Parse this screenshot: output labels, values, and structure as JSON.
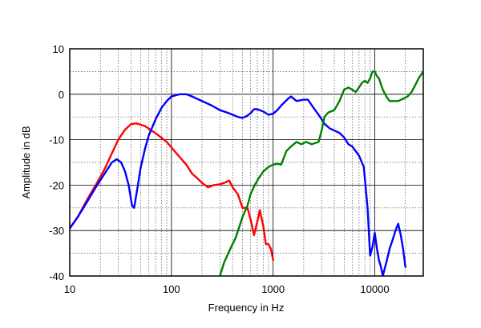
{
  "chart_data": {
    "type": "line",
    "title": "",
    "xlabel": "Frequency in Hz",
    "ylabel": "Amplitude in dB",
    "x_scale": "log",
    "xlim": [
      10,
      30000
    ],
    "ylim": [
      -40,
      10
    ],
    "x_ticks": [
      10,
      100,
      1000,
      10000
    ],
    "x_tick_labels": [
      "10",
      "100",
      "1000",
      "10000"
    ],
    "y_ticks": [
      10,
      0,
      -10,
      -20,
      -30,
      -40
    ],
    "y_tick_labels": [
      "10",
      "0",
      "-10",
      "-20",
      "-30",
      "-40"
    ],
    "grid": "on",
    "legend": "none",
    "series": [
      {
        "color": "#ff0000",
        "points": [
          [
            10,
            -29.5
          ],
          [
            12,
            -27
          ],
          [
            15,
            -23
          ],
          [
            18,
            -20
          ],
          [
            22,
            -16.5
          ],
          [
            26,
            -13
          ],
          [
            30,
            -10
          ],
          [
            35,
            -7.8
          ],
          [
            40,
            -6.6
          ],
          [
            45,
            -6.4
          ],
          [
            55,
            -7
          ],
          [
            70,
            -8.6
          ],
          [
            90,
            -10.5
          ],
          [
            110,
            -12.8
          ],
          [
            140,
            -15.5
          ],
          [
            160,
            -17.5
          ],
          [
            180,
            -18.5
          ],
          [
            200,
            -19.5
          ],
          [
            230,
            -20.5
          ],
          [
            260,
            -20
          ],
          [
            300,
            -19.8
          ],
          [
            340,
            -19.4
          ],
          [
            370,
            -19
          ],
          [
            400,
            -20.5
          ],
          [
            450,
            -22
          ],
          [
            500,
            -25
          ],
          [
            560,
            -25
          ],
          [
            600,
            -27.5
          ],
          [
            650,
            -31
          ],
          [
            700,
            -28
          ],
          [
            740,
            -25.5
          ],
          [
            800,
            -29
          ],
          [
            850,
            -33
          ],
          [
            900,
            -33
          ],
          [
            950,
            -34
          ],
          [
            1000,
            -36.5
          ]
        ]
      },
      {
        "color": "#0000ff",
        "points": [
          [
            10,
            -29.5
          ],
          [
            12,
            -27
          ],
          [
            15,
            -23.5
          ],
          [
            18,
            -20.5
          ],
          [
            22,
            -17.5
          ],
          [
            26,
            -15
          ],
          [
            29,
            -14.3
          ],
          [
            32,
            -15
          ],
          [
            35,
            -17
          ],
          [
            38,
            -20
          ],
          [
            41,
            -24.5
          ],
          [
            43,
            -25
          ],
          [
            46,
            -21
          ],
          [
            50,
            -16
          ],
          [
            55,
            -12
          ],
          [
            60,
            -9
          ],
          [
            70,
            -5.5
          ],
          [
            80,
            -3
          ],
          [
            90,
            -1.5
          ],
          [
            100,
            -0.5
          ],
          [
            120,
            0
          ],
          [
            140,
            0
          ],
          [
            160,
            -0.5
          ],
          [
            200,
            -1.5
          ],
          [
            250,
            -2.5
          ],
          [
            300,
            -3.5
          ],
          [
            350,
            -4
          ],
          [
            400,
            -4.5
          ],
          [
            450,
            -5
          ],
          [
            500,
            -5.2
          ],
          [
            550,
            -4.8
          ],
          [
            600,
            -4.2
          ],
          [
            650,
            -3.3
          ],
          [
            700,
            -3.3
          ],
          [
            800,
            -3.8
          ],
          [
            900,
            -4.5
          ],
          [
            1000,
            -4.3
          ],
          [
            1100,
            -3.5
          ],
          [
            1200,
            -2.5
          ],
          [
            1400,
            -1
          ],
          [
            1500,
            -0.5
          ],
          [
            1700,
            -1.5
          ],
          [
            2000,
            -1.2
          ],
          [
            2200,
            -1.2
          ],
          [
            2500,
            -3
          ],
          [
            2800,
            -4.5
          ],
          [
            3200,
            -6.5
          ],
          [
            3600,
            -7.5
          ],
          [
            4000,
            -8
          ],
          [
            4500,
            -8.5
          ],
          [
            5000,
            -9.5
          ],
          [
            5500,
            -11
          ],
          [
            6000,
            -11.5
          ],
          [
            7000,
            -13.5
          ],
          [
            7800,
            -16
          ],
          [
            8500,
            -25
          ],
          [
            9000,
            -35.5
          ],
          [
            9500,
            -33.5
          ],
          [
            10000,
            -30.5
          ],
          [
            10500,
            -34
          ],
          [
            11000,
            -36.5
          ],
          [
            11500,
            -38
          ],
          [
            12000,
            -40
          ],
          [
            13000,
            -37
          ],
          [
            14000,
            -34
          ],
          [
            15000,
            -32
          ],
          [
            16000,
            -30
          ],
          [
            17000,
            -28.5
          ],
          [
            18000,
            -31
          ],
          [
            19000,
            -34
          ],
          [
            20000,
            -38
          ]
        ]
      },
      {
        "color": "#008000",
        "points": [
          [
            300,
            -40
          ],
          [
            330,
            -37
          ],
          [
            380,
            -34
          ],
          [
            430,
            -31.5
          ],
          [
            500,
            -27
          ],
          [
            560,
            -24.5
          ],
          [
            600,
            -22
          ],
          [
            660,
            -20
          ],
          [
            720,
            -18.5
          ],
          [
            800,
            -17
          ],
          [
            900,
            -16
          ],
          [
            1000,
            -15.5
          ],
          [
            1100,
            -15.3
          ],
          [
            1200,
            -15.5
          ],
          [
            1250,
            -14.5
          ],
          [
            1350,
            -12.5
          ],
          [
            1500,
            -11.5
          ],
          [
            1700,
            -10.5
          ],
          [
            1900,
            -11
          ],
          [
            2100,
            -10.5
          ],
          [
            2400,
            -11
          ],
          [
            2800,
            -10.5
          ],
          [
            3000,
            -8
          ],
          [
            3200,
            -5
          ],
          [
            3500,
            -4
          ],
          [
            4000,
            -3.5
          ],
          [
            4500,
            -1.5
          ],
          [
            5000,
            1
          ],
          [
            5500,
            1.5
          ],
          [
            6000,
            1
          ],
          [
            6500,
            0.5
          ],
          [
            7000,
            1.5
          ],
          [
            7500,
            2.5
          ],
          [
            8000,
            3
          ],
          [
            8500,
            2.5
          ],
          [
            9000,
            3.5
          ],
          [
            9500,
            5
          ],
          [
            10000,
            5
          ],
          [
            10500,
            4
          ],
          [
            11000,
            3.5
          ],
          [
            12000,
            1
          ],
          [
            13000,
            -0.5
          ],
          [
            14000,
            -1.5
          ],
          [
            15000,
            -1.5
          ],
          [
            17000,
            -1.5
          ],
          [
            19000,
            -1
          ],
          [
            21000,
            -0.5
          ],
          [
            23000,
            0.5
          ],
          [
            25000,
            2
          ],
          [
            27000,
            3.5
          ],
          [
            30000,
            5
          ]
        ]
      }
    ]
  }
}
